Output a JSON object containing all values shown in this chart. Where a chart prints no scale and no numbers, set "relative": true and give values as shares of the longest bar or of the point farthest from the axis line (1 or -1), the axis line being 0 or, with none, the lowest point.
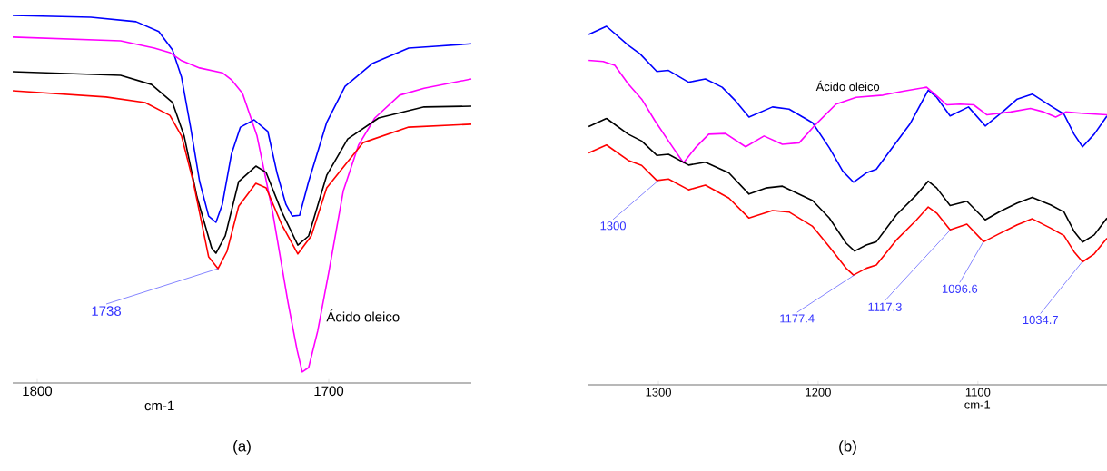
{
  "chart_data": [
    {
      "type": "line",
      "title": "(a)",
      "xlabel": "cm-1",
      "relative": true,
      "xlim": [
        1808.4,
        1651.1
      ],
      "xticks": [
        1800,
        1700
      ],
      "series": [
        {
          "color": "#0000ff",
          "x": [
            1808.4,
            1781.6,
            1766.1,
            1758.3,
            1753.6,
            1750.5,
            1747.4,
            1744.3,
            1741.2,
            1738.7,
            1736.5,
            1733.4,
            1730.3,
            1725.6,
            1720.9,
            1717.8,
            1714.7,
            1712.5,
            1710.0,
            1706.9,
            1700.7,
            1694.4,
            1685.1,
            1672.6,
            1663.3,
            1651.1
          ],
          "values": [
            1.0,
            0.995,
            0.983,
            0.956,
            0.906,
            0.832,
            0.696,
            0.548,
            0.454,
            0.437,
            0.486,
            0.622,
            0.696,
            0.716,
            0.684,
            0.573,
            0.486,
            0.454,
            0.456,
            0.548,
            0.709,
            0.807,
            0.869,
            0.911,
            0.916,
            0.923
          ]
        },
        {
          "name": "Ácido oleico",
          "color": "#ff00ff",
          "x": [
            1808.4,
            1771.4,
            1759.8,
            1754.5,
            1750.5,
            1744.3,
            1736.5,
            1733.4,
            1729.6,
            1724.6,
            1719.3,
            1714.0,
            1710.9,
            1709.1,
            1706.9,
            1703.8,
            1700.0,
            1695.0,
            1689.8,
            1684.2,
            1675.7,
            1667.3,
            1651.1
          ],
          "values": [
            0.941,
            0.931,
            0.911,
            0.899,
            0.877,
            0.857,
            0.844,
            0.825,
            0.788,
            0.672,
            0.467,
            0.22,
            0.091,
            0.03,
            0.042,
            0.141,
            0.301,
            0.523,
            0.647,
            0.721,
            0.783,
            0.802,
            0.827
          ]
        },
        {
          "color": "#000000",
          "x": [
            1808.4,
            1771.4,
            1760.8,
            1753.6,
            1749.6,
            1745.2,
            1740.2,
            1738.7,
            1735.5,
            1730.9,
            1725.0,
            1721.5,
            1716.2,
            1710.6,
            1706.9,
            1700.7,
            1693.5,
            1682.9,
            1667.3,
            1651.1
          ],
          "values": [
            0.847,
            0.837,
            0.812,
            0.763,
            0.672,
            0.506,
            0.368,
            0.353,
            0.4,
            0.548,
            0.59,
            0.573,
            0.467,
            0.375,
            0.4,
            0.565,
            0.664,
            0.721,
            0.751,
            0.753
          ]
        },
        {
          "color": "#ff0000",
          "x": [
            1808.4,
            1776.4,
            1763.0,
            1754.5,
            1750.5,
            1746.5,
            1741.2,
            1738.0,
            1734.9,
            1730.9,
            1725.0,
            1721.5,
            1716.2,
            1710.6,
            1706.0,
            1700.7,
            1688.2,
            1672.6,
            1651.1
          ],
          "values": [
            0.795,
            0.778,
            0.763,
            0.728,
            0.672,
            0.548,
            0.343,
            0.311,
            0.358,
            0.481,
            0.543,
            0.531,
            0.432,
            0.351,
            0.4,
            0.531,
            0.654,
            0.696,
            0.704
          ]
        }
      ],
      "annotations": [
        {
          "text": "1738",
          "x": 1738,
          "y": 0.311
        }
      ]
    },
    {
      "type": "line",
      "title": "(b)",
      "xlabel": "cm-1",
      "relative": true,
      "xlim": [
        1343.8,
        1019.2
      ],
      "xticks": [
        1300,
        1200,
        1100
      ],
      "series": [
        {
          "color": "#0000ff",
          "x": [
            1343.7,
            1332.5,
            1318.9,
            1311.5,
            1301.0,
            1293.7,
            1281.1,
            1270.6,
            1260.1,
            1251.7,
            1243.3,
            1228.6,
            1218.2,
            1203.5,
            1193.0,
            1184.6,
            1177.9,
            1169.9,
            1163.6,
            1155.2,
            1142.6,
            1131.1,
            1125.8,
            1117.4,
            1105.9,
            1095.4,
            1083.8,
            1075.4,
            1066.0,
            1054.5,
            1046.1,
            1039.8,
            1034.5,
            1027.2,
            1019.2
          ],
          "values": [
            0.977,
            1.0,
            0.947,
            0.923,
            0.874,
            0.877,
            0.844,
            0.853,
            0.83,
            0.792,
            0.747,
            0.775,
            0.769,
            0.731,
            0.661,
            0.596,
            0.565,
            0.591,
            0.601,
            0.652,
            0.727,
            0.822,
            0.802,
            0.75,
            0.775,
            0.722,
            0.764,
            0.797,
            0.811,
            0.778,
            0.755,
            0.699,
            0.664,
            0.699,
            0.75
          ]
        },
        {
          "name": "Ácido oleico",
          "color": "#ff00ff",
          "x": [
            1343.7,
            1334.6,
            1327.3,
            1318.9,
            1310.5,
            1302.1,
            1293.7,
            1284.3,
            1276.9,
            1268.5,
            1258.0,
            1245.4,
            1233.9,
            1222.4,
            1211.9,
            1201.4,
            1188.8,
            1176.2,
            1159.4,
            1146.8,
            1132.1,
            1125.8,
            1119.5,
            1111.1,
            1102.7,
            1094.3,
            1079.6,
            1067.1,
            1058.7,
            1051.3,
            1045.0,
            1033.5,
            1019.2
          ],
          "values": [
            0.905,
            0.902,
            0.891,
            0.839,
            0.797,
            0.736,
            0.68,
            0.619,
            0.661,
            0.699,
            0.701,
            0.664,
            0.694,
            0.671,
            0.675,
            0.727,
            0.783,
            0.802,
            0.808,
            0.819,
            0.83,
            0.806,
            0.781,
            0.783,
            0.781,
            0.753,
            0.761,
            0.771,
            0.761,
            0.747,
            0.761,
            0.757,
            0.753
          ]
        },
        {
          "color": "#000000",
          "x": [
            1343.7,
            1332.5,
            1318.9,
            1310.5,
            1301.0,
            1293.7,
            1281.1,
            1270.6,
            1255.9,
            1243.3,
            1232.8,
            1222.4,
            1203.5,
            1193.0,
            1182.5,
            1177.2,
            1169.9,
            1163.6,
            1151.0,
            1138.4,
            1131.1,
            1125.8,
            1117.4,
            1106.9,
            1095.4,
            1085.9,
            1075.4,
            1066.0,
            1054.5,
            1046.1,
            1039.8,
            1034.5,
            1027.2,
            1019.2
          ],
          "values": [
            0.72,
            0.743,
            0.699,
            0.68,
            0.64,
            0.643,
            0.613,
            0.621,
            0.591,
            0.532,
            0.549,
            0.554,
            0.514,
            0.465,
            0.395,
            0.373,
            0.39,
            0.399,
            0.474,
            0.53,
            0.568,
            0.549,
            0.5,
            0.512,
            0.46,
            0.484,
            0.507,
            0.523,
            0.502,
            0.482,
            0.428,
            0.398,
            0.418,
            0.465
          ]
        },
        {
          "color": "#ff0000",
          "x": [
            1343.7,
            1332.5,
            1318.9,
            1310.5,
            1301.0,
            1293.7,
            1281.1,
            1270.6,
            1255.9,
            1243.3,
            1228.6,
            1218.2,
            1203.5,
            1193.0,
            1182.5,
            1177.9,
            1169.9,
            1163.6,
            1151.0,
            1138.4,
            1131.1,
            1125.8,
            1117.4,
            1106.9,
            1096.4,
            1085.9,
            1075.4,
            1066.0,
            1054.5,
            1046.1,
            1039.8,
            1034.5,
            1027.2,
            1019.2
          ],
          "values": [
            0.647,
            0.669,
            0.626,
            0.612,
            0.57,
            0.574,
            0.544,
            0.557,
            0.521,
            0.465,
            0.486,
            0.482,
            0.442,
            0.385,
            0.325,
            0.306,
            0.325,
            0.334,
            0.404,
            0.46,
            0.496,
            0.479,
            0.432,
            0.448,
            0.399,
            0.423,
            0.446,
            0.463,
            0.437,
            0.416,
            0.371,
            0.343,
            0.365,
            0.409
          ]
        }
      ],
      "annotations": [
        {
          "text": "1300",
          "x": 1300,
          "y": 0.57
        },
        {
          "text": "1177.4",
          "x": 1177.4,
          "y": 0.306
        },
        {
          "text": "1117.3",
          "x": 1117.3,
          "y": 0.432
        },
        {
          "text": "1096.6",
          "x": 1096.6,
          "y": 0.399
        },
        {
          "text": "1034.7",
          "x": 1034.7,
          "y": 0.343
        }
      ]
    }
  ]
}
